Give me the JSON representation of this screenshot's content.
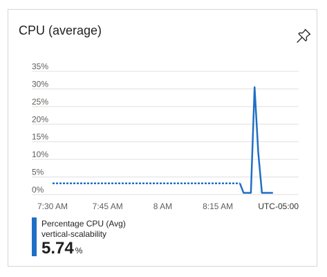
{
  "card": {
    "title": "CPU (average)",
    "pin_icon": "pin-icon"
  },
  "chart_data": {
    "type": "line",
    "title": "CPU (average)",
    "xlabel": "",
    "ylabel": "",
    "ylim": [
      0,
      35
    ],
    "yticks": [
      0,
      5,
      10,
      15,
      20,
      25,
      30,
      35
    ],
    "ytick_labels": [
      "0%",
      "5%",
      "10%",
      "15%",
      "20%",
      "25%",
      "30%",
      "35%"
    ],
    "xlim": [
      0,
      67
    ],
    "xticks": [
      0,
      15,
      30,
      45
    ],
    "xtick_labels": [
      "7:30 AM",
      "7:45 AM",
      "8 AM",
      "8:15 AM"
    ],
    "timezone_label": "UTC-05:00",
    "grid": true,
    "series": [
      {
        "name": "Percentage CPU (Avg)",
        "segments": [
          {
            "style": "dotted",
            "x": [
              0,
              51
            ],
            "y": [
              3.2,
              3.2
            ]
          },
          {
            "style": "solid",
            "x": [
              51,
              52,
              54,
              55,
              56,
              57,
              58,
              60
            ],
            "y": [
              3.2,
              0.5,
              0.5,
              30.5,
              12,
              0.5,
              0.5,
              0.5
            ]
          }
        ]
      }
    ]
  },
  "legend": {
    "series_name": "Percentage CPU (Avg)",
    "resource": "vertical-scalability",
    "value": "5.74",
    "unit": "%"
  },
  "colors": {
    "series": "#1f6fc5",
    "grid": "#e1dfdd",
    "tick_text": "#605e5c"
  }
}
